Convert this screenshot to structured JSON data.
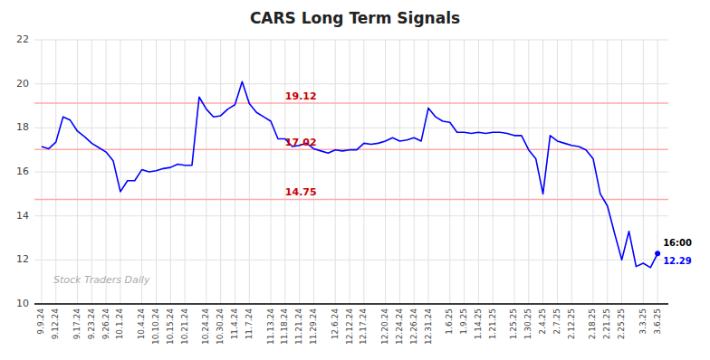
{
  "chart_data": {
    "type": "line",
    "title": "CARS Long Term Signals",
    "categories": [
      "9.9.24",
      null,
      "9.12.24",
      null,
      null,
      "9.17.24",
      null,
      "9.23.24",
      null,
      "9.26.24",
      null,
      "10.1.24",
      null,
      null,
      "10.4.24",
      null,
      "10.10.24",
      null,
      "10.15.24",
      null,
      "10.21.24",
      null,
      null,
      "10.24.24",
      null,
      "10.30.24",
      null,
      "11.4.24",
      null,
      "11.7.24",
      null,
      null,
      "11.13.24",
      null,
      "11.18.24",
      null,
      "11.21.24",
      null,
      "11.29.24",
      null,
      null,
      "12.6.24",
      null,
      "12.12.24",
      null,
      "12.17.24",
      null,
      null,
      "12.20.24",
      null,
      "12.24.24",
      null,
      "12.26.24",
      null,
      "12.31.24",
      null,
      null,
      "1.6.25",
      null,
      "1.9.25",
      null,
      "1.14.25",
      null,
      "1.21.25",
      null,
      null,
      "1.25.25",
      null,
      "1.30.25",
      null,
      "2.4.25",
      null,
      "2.7.25",
      null,
      "2.12.25",
      null,
      null,
      "2.18.25",
      null,
      "2.21.25",
      null,
      "2.25.25",
      null,
      null,
      "3.3.25",
      null,
      "3.6.25"
    ],
    "series": [
      {
        "name": "CARS",
        "color": "blue",
        "marker": "last",
        "values": [
          17.15,
          17.05,
          17.35,
          18.5,
          18.35,
          17.85,
          17.6,
          17.3,
          17.1,
          16.9,
          16.5,
          15.1,
          15.6,
          15.6,
          16.1,
          16.0,
          16.05,
          16.15,
          16.2,
          16.35,
          16.3,
          16.3,
          19.4,
          18.85,
          18.5,
          18.55,
          18.85,
          19.05,
          20.1,
          19.1,
          18.7,
          18.5,
          18.3,
          17.5,
          17.5,
          17.15,
          17.2,
          17.3,
          17.05,
          16.95,
          16.85,
          17.0,
          16.95,
          17.0,
          17.0,
          17.3,
          17.25,
          17.3,
          17.4,
          17.55,
          17.4,
          17.45,
          17.55,
          17.4,
          18.9,
          18.5,
          18.3,
          18.25,
          17.8,
          17.8,
          17.75,
          17.8,
          17.75,
          17.8,
          17.8,
          17.75,
          17.65,
          17.65,
          17.0,
          16.6,
          15.0,
          17.65,
          17.4,
          17.3,
          17.2,
          17.15,
          17.0,
          16.6,
          15.0,
          14.45,
          13.2,
          12.0,
          13.3,
          11.7,
          11.85,
          11.65,
          12.29
        ]
      }
    ],
    "reference_lines": [
      {
        "value": 19.12,
        "label": "19.12",
        "color": "#ffaaaa",
        "label_color": "#cc0000"
      },
      {
        "value": 17.02,
        "label": "17.02",
        "color": "#ffaaaa",
        "label_color": "#cc0000"
      },
      {
        "value": 14.75,
        "label": "14.75",
        "color": "#ffaaaa",
        "label_color": "#cc0000"
      }
    ],
    "annotations": [
      {
        "text": "16:00",
        "color": "black"
      },
      {
        "text": "12.29",
        "color": "blue"
      }
    ],
    "watermark": "Stock Traders Daily",
    "ylim": [
      10,
      22
    ],
    "yticks": [
      10,
      12,
      14,
      16,
      18,
      20,
      22
    ],
    "grid": true
  }
}
